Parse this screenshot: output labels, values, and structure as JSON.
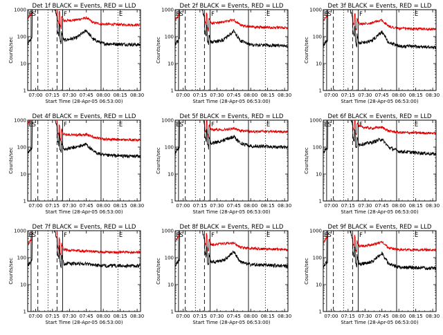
{
  "chart_data": {
    "type": "line",
    "layout": "3x3 grid of panels",
    "yscale": "log",
    "ylim": [
      1,
      1000
    ],
    "ylabel": "Counts/sec",
    "xlabel": "Start Time (28-Apr-05 06:53:00)",
    "x_ticks": [
      "07:00",
      "07:15",
      "07:30",
      "07:45",
      "08:00",
      "08:15",
      "08:30"
    ],
    "y_ticks": [
      "1",
      "10",
      "100",
      "1000"
    ],
    "series_colors": {
      "events": "#000000",
      "lld": "#e00000"
    },
    "x_range": [
      "06:53",
      "08:33"
    ],
    "panels": [
      {
        "title": "Det 1f BLACK = Events, RED = LLD",
        "markers": [
          {
            "label": "E",
            "x": "06:53",
            "style": "solid"
          },
          {
            "label": "S",
            "x": "06:56",
            "style": "solid"
          },
          {
            "label": "",
            "x": "07:02",
            "style": "dashed"
          },
          {
            "label": "",
            "x": "07:11",
            "style": "dotted"
          },
          {
            "label": "",
            "x": "07:19",
            "style": "dashed"
          },
          {
            "label": "F",
            "x": "07:24",
            "style": "solid"
          },
          {
            "label": "",
            "x": "07:58",
            "style": "solid"
          },
          {
            "label": "E",
            "x": "08:13",
            "style": "dotted"
          }
        ],
        "events_key": [
          [
            6.9,
            55
          ],
          [
            7.22,
            55
          ],
          [
            7.38,
            70
          ],
          [
            7.6,
            90
          ],
          [
            7.75,
            170
          ],
          [
            7.85,
            80
          ],
          [
            8.0,
            55
          ],
          [
            8.55,
            50
          ]
        ],
        "lld_key": [
          [
            6.9,
            450
          ],
          [
            7.22,
            450
          ],
          [
            7.38,
            380
          ],
          [
            7.6,
            420
          ],
          [
            7.75,
            500
          ],
          [
            7.85,
            330
          ],
          [
            8.0,
            290
          ],
          [
            8.55,
            270
          ]
        ]
      },
      {
        "title": "Det 2f BLACK = Events, RED = LLD",
        "markers": [
          {
            "label": "E",
            "x": "06:53",
            "style": "solid"
          },
          {
            "label": "S",
            "x": "06:56",
            "style": "solid"
          },
          {
            "label": "",
            "x": "07:02",
            "style": "dashed"
          },
          {
            "label": "",
            "x": "07:11",
            "style": "dotted"
          },
          {
            "label": "",
            "x": "07:19",
            "style": "dashed"
          },
          {
            "label": "F",
            "x": "07:24",
            "style": "solid"
          },
          {
            "label": "",
            "x": "07:58",
            "style": "solid"
          },
          {
            "label": "E",
            "x": "08:13",
            "style": "dotted"
          }
        ],
        "events_key": [
          [
            6.9,
            50
          ],
          [
            7.22,
            50
          ],
          [
            7.38,
            60
          ],
          [
            7.6,
            75
          ],
          [
            7.75,
            160
          ],
          [
            7.85,
            70
          ],
          [
            8.0,
            50
          ],
          [
            8.55,
            45
          ]
        ],
        "lld_key": [
          [
            6.9,
            400
          ],
          [
            7.22,
            420
          ],
          [
            7.38,
            300
          ],
          [
            7.6,
            350
          ],
          [
            7.75,
            430
          ],
          [
            7.85,
            260
          ],
          [
            8.0,
            230
          ],
          [
            8.55,
            210
          ]
        ]
      },
      {
        "title": "Det 3f BLACK = Events, RED = LLD",
        "markers": [
          {
            "label": "E",
            "x": "06:53",
            "style": "solid"
          },
          {
            "label": "S",
            "x": "06:56",
            "style": "solid"
          },
          {
            "label": "",
            "x": "07:02",
            "style": "dashed"
          },
          {
            "label": "",
            "x": "07:11",
            "style": "dotted"
          },
          {
            "label": "",
            "x": "07:19",
            "style": "dashed"
          },
          {
            "label": "F",
            "x": "07:24",
            "style": "solid"
          },
          {
            "label": "",
            "x": "07:58",
            "style": "solid"
          },
          {
            "label": "E",
            "x": "08:13",
            "style": "dotted"
          }
        ],
        "events_key": [
          [
            6.9,
            45
          ],
          [
            7.22,
            45
          ],
          [
            7.38,
            55
          ],
          [
            7.6,
            70
          ],
          [
            7.75,
            150
          ],
          [
            7.85,
            60
          ],
          [
            8.0,
            45
          ],
          [
            8.55,
            40
          ]
        ],
        "lld_key": [
          [
            6.9,
            380
          ],
          [
            7.22,
            380
          ],
          [
            7.38,
            280
          ],
          [
            7.6,
            330
          ],
          [
            7.75,
            400
          ],
          [
            7.85,
            240
          ],
          [
            8.0,
            200
          ],
          [
            8.55,
            190
          ]
        ]
      },
      {
        "title": "Det 4f BLACK = Events, RED = LLD",
        "markers": [
          {
            "label": "E",
            "x": "06:53",
            "style": "solid"
          },
          {
            "label": "S",
            "x": "06:56",
            "style": "solid"
          },
          {
            "label": "",
            "x": "07:02",
            "style": "dashed"
          },
          {
            "label": "",
            "x": "07:11",
            "style": "dotted"
          },
          {
            "label": "",
            "x": "07:19",
            "style": "dashed"
          },
          {
            "label": "F",
            "x": "07:24",
            "style": "solid"
          },
          {
            "label": "",
            "x": "07:58",
            "style": "solid"
          },
          {
            "label": "E",
            "x": "08:13",
            "style": "dotted"
          }
        ],
        "events_key": [
          [
            6.9,
            60
          ],
          [
            7.22,
            60
          ],
          [
            7.38,
            80
          ],
          [
            7.6,
            100
          ],
          [
            7.75,
            130
          ],
          [
            7.85,
            70
          ],
          [
            8.0,
            50
          ],
          [
            8.55,
            45
          ]
        ],
        "lld_key": [
          [
            6.9,
            700
          ],
          [
            7.22,
            700
          ],
          [
            7.38,
            300
          ],
          [
            7.6,
            280
          ],
          [
            7.75,
            300
          ],
          [
            7.85,
            240
          ],
          [
            8.0,
            200
          ],
          [
            8.55,
            180
          ]
        ]
      },
      {
        "title": "Det 5f BLACK = Events, RED = LLD",
        "markers": [
          {
            "label": "E",
            "x": "06:53",
            "style": "solid"
          },
          {
            "label": "S",
            "x": "06:56",
            "style": "solid"
          },
          {
            "label": "",
            "x": "07:02",
            "style": "dashed"
          },
          {
            "label": "",
            "x": "07:11",
            "style": "dotted"
          },
          {
            "label": "",
            "x": "07:19",
            "style": "dashed"
          },
          {
            "label": "F",
            "x": "07:24",
            "style": "solid"
          },
          {
            "label": "",
            "x": "07:58",
            "style": "solid"
          },
          {
            "label": "E",
            "x": "08:13",
            "style": "dotted"
          }
        ],
        "events_key": [
          [
            6.9,
            60
          ],
          [
            7.22,
            60
          ],
          [
            7.38,
            130
          ],
          [
            7.6,
            180
          ],
          [
            7.75,
            250
          ],
          [
            7.85,
            140
          ],
          [
            8.0,
            110
          ],
          [
            8.55,
            100
          ]
        ],
        "lld_key": [
          [
            6.9,
            3000
          ],
          [
            7.22,
            3000
          ],
          [
            7.38,
            450
          ],
          [
            7.6,
            450
          ],
          [
            7.75,
            500
          ],
          [
            7.85,
            400
          ],
          [
            8.0,
            380
          ],
          [
            8.55,
            380
          ]
        ]
      },
      {
        "title": "Det 6f BLACK = Events, RED = LLD",
        "markers": [
          {
            "label": "E",
            "x": "06:53",
            "style": "solid"
          },
          {
            "label": "S",
            "x": "06:56",
            "style": "solid"
          },
          {
            "label": "",
            "x": "07:02",
            "style": "dashed"
          },
          {
            "label": "",
            "x": "07:11",
            "style": "dotted"
          },
          {
            "label": "",
            "x": "07:19",
            "style": "dashed"
          },
          {
            "label": "F",
            "x": "07:24",
            "style": "solid"
          },
          {
            "label": "",
            "x": "07:58",
            "style": "solid"
          },
          {
            "label": "E",
            "x": "08:13",
            "style": "dotted"
          }
        ],
        "events_key": [
          [
            6.9,
            60
          ],
          [
            7.22,
            60
          ],
          [
            7.38,
            120
          ],
          [
            7.6,
            150
          ],
          [
            7.75,
            200
          ],
          [
            7.85,
            100
          ],
          [
            8.0,
            70
          ],
          [
            8.55,
            55
          ]
        ],
        "lld_key": [
          [
            6.9,
            5000
          ],
          [
            7.22,
            5000
          ],
          [
            7.38,
            600
          ],
          [
            7.6,
            500
          ],
          [
            7.75,
            550
          ],
          [
            7.85,
            400
          ],
          [
            8.0,
            350
          ],
          [
            8.55,
            330
          ]
        ]
      },
      {
        "title": "Det 7f BLACK = Events, RED = LLD",
        "markers": [
          {
            "label": "E",
            "x": "06:53",
            "style": "solid"
          },
          {
            "label": "S",
            "x": "06:56",
            "style": "solid"
          },
          {
            "label": "",
            "x": "07:02",
            "style": "dashed"
          },
          {
            "label": "",
            "x": "07:11",
            "style": "dotted"
          },
          {
            "label": "",
            "x": "07:19",
            "style": "dashed"
          },
          {
            "label": "F",
            "x": "07:24",
            "style": "solid"
          },
          {
            "label": "",
            "x": "07:58",
            "style": "solid"
          },
          {
            "label": "E",
            "x": "08:13",
            "style": "dotted"
          }
        ],
        "events_key": [
          [
            6.9,
            50
          ],
          [
            7.22,
            50
          ],
          [
            7.38,
            60
          ],
          [
            7.6,
            60
          ],
          [
            7.75,
            60
          ],
          [
            7.85,
            55
          ],
          [
            8.0,
            50
          ],
          [
            8.55,
            50
          ]
        ],
        "lld_key": [
          [
            6.9,
            300
          ],
          [
            7.22,
            300
          ],
          [
            7.38,
            200
          ],
          [
            7.6,
            180
          ],
          [
            7.75,
            180
          ],
          [
            7.85,
            170
          ],
          [
            8.0,
            160
          ],
          [
            8.55,
            160
          ]
        ]
      },
      {
        "title": "Det 8f BLACK = Events, RED = LLD",
        "markers": [
          {
            "label": "E",
            "x": "06:53",
            "style": "solid"
          },
          {
            "label": "S",
            "x": "06:56",
            "style": "solid"
          },
          {
            "label": "",
            "x": "07:02",
            "style": "dashed"
          },
          {
            "label": "",
            "x": "07:11",
            "style": "dotted"
          },
          {
            "label": "",
            "x": "07:19",
            "style": "dashed"
          },
          {
            "label": "F",
            "x": "07:24",
            "style": "solid"
          },
          {
            "label": "",
            "x": "07:58",
            "style": "solid"
          },
          {
            "label": "E",
            "x": "08:13",
            "style": "dotted"
          }
        ],
        "events_key": [
          [
            6.9,
            50
          ],
          [
            7.22,
            50
          ],
          [
            7.38,
            65
          ],
          [
            7.6,
            80
          ],
          [
            7.75,
            160
          ],
          [
            7.85,
            70
          ],
          [
            8.0,
            55
          ],
          [
            8.55,
            50
          ]
        ],
        "lld_key": [
          [
            6.9,
            400
          ],
          [
            7.22,
            400
          ],
          [
            7.38,
            300
          ],
          [
            7.6,
            330
          ],
          [
            7.75,
            350
          ],
          [
            7.85,
            240
          ],
          [
            8.0,
            220
          ],
          [
            8.55,
            200
          ]
        ]
      },
      {
        "title": "Det 9f BLACK = Events, RED = LLD",
        "markers": [
          {
            "label": "E",
            "x": "06:53",
            "style": "solid"
          },
          {
            "label": "S",
            "x": "06:56",
            "style": "solid"
          },
          {
            "label": "",
            "x": "07:02",
            "style": "dashed"
          },
          {
            "label": "",
            "x": "07:11",
            "style": "dotted"
          },
          {
            "label": "",
            "x": "07:19",
            "style": "dashed"
          },
          {
            "label": "F",
            "x": "07:24",
            "style": "solid"
          },
          {
            "label": "",
            "x": "07:58",
            "style": "solid"
          },
          {
            "label": "E",
            "x": "08:13",
            "style": "dotted"
          }
        ],
        "events_key": [
          [
            6.9,
            45
          ],
          [
            7.22,
            45
          ],
          [
            7.38,
            55
          ],
          [
            7.6,
            70
          ],
          [
            7.75,
            150
          ],
          [
            7.85,
            60
          ],
          [
            8.0,
            45
          ],
          [
            8.55,
            40
          ]
        ],
        "lld_key": [
          [
            6.9,
            350
          ],
          [
            7.22,
            350
          ],
          [
            7.38,
            260
          ],
          [
            7.6,
            300
          ],
          [
            7.75,
            380
          ],
          [
            7.85,
            230
          ],
          [
            8.0,
            200
          ],
          [
            8.55,
            190
          ]
        ]
      }
    ]
  }
}
